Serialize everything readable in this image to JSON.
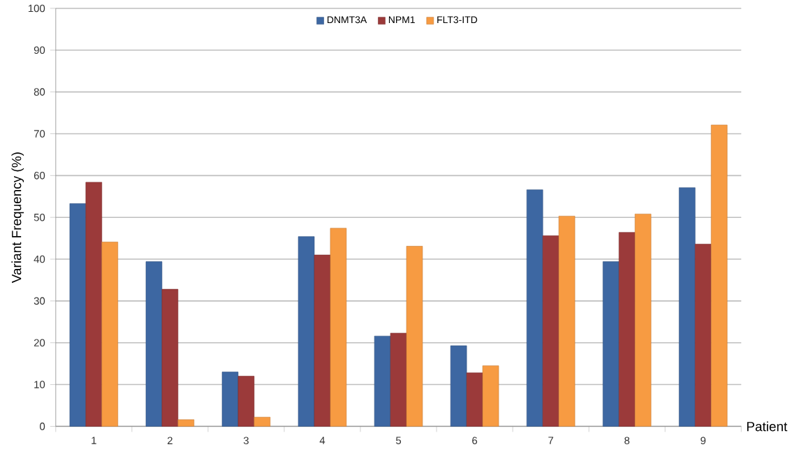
{
  "chart_data": {
    "type": "bar",
    "xlabel": "Patient",
    "ylabel": "Variant Frequency (%)",
    "categories": [
      "1",
      "2",
      "3",
      "4",
      "5",
      "6",
      "7",
      "8",
      "9"
    ],
    "series": [
      {
        "name": "DNMT3A",
        "color": "#3d67a2",
        "values": [
          53.3,
          39.4,
          13.0,
          45.4,
          21.6,
          19.3,
          56.6,
          39.4,
          57.1
        ]
      },
      {
        "name": "NPM1",
        "color": "#9b3a3a",
        "values": [
          58.4,
          32.8,
          12.0,
          41.0,
          22.3,
          12.8,
          45.6,
          46.4,
          43.6
        ]
      },
      {
        "name": "FLT3-ITD",
        "color": "#f79b42",
        "values": [
          44.1,
          1.6,
          2.2,
          47.4,
          43.1,
          14.5,
          50.3,
          50.8,
          72.1
        ]
      }
    ],
    "ylim": [
      0,
      100
    ],
    "yticks": [
      0,
      10,
      20,
      30,
      40,
      50,
      60,
      70,
      80,
      90,
      100
    ],
    "grid": "y",
    "legend": "top"
  }
}
